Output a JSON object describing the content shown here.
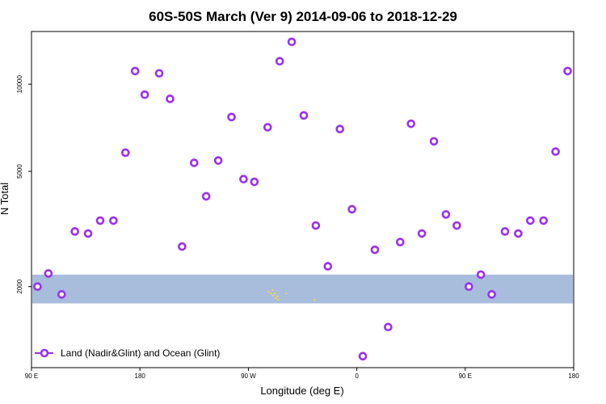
{
  "chart_data": {
    "type": "scatter",
    "title": "60S-50S March (Ver 9)   2014-09-06 to 2018-12-29",
    "xlabel": "Longitude (deg E)",
    "ylabel": "N Total",
    "x_ticks": [
      {
        "value": 90,
        "label": "90 E"
      },
      {
        "value": 180,
        "label": "180"
      },
      {
        "value": 270,
        "label": "90 W"
      },
      {
        "value": 360,
        "label": "0"
      },
      {
        "value": 450,
        "label": "90 E"
      },
      {
        "value": 540,
        "label": "180"
      }
    ],
    "y_ticks": [
      {
        "value": 2000,
        "label": "2000"
      },
      {
        "value": 5000,
        "label": "5000"
      },
      {
        "value": 10000,
        "label": "10000"
      }
    ],
    "xlim": [
      90,
      540
    ],
    "ylim": [
      1050,
      15200
    ],
    "y_scale": "log",
    "grid": false,
    "legend_position": "bottom-left",
    "land_band": {
      "y_range": [
        1750,
        2200
      ],
      "color": "#a8bcdc"
    },
    "land_color": "#f0d060",
    "series": [
      {
        "name": "Land (Nadir&Glint) and Ocean (Glint)",
        "color": "#9b30f0",
        "points": [
          {
            "x": 95,
            "y": 2000
          },
          {
            "x": 104,
            "y": 2220
          },
          {
            "x": 115,
            "y": 1880
          },
          {
            "x": 126,
            "y": 3100
          },
          {
            "x": 137,
            "y": 3050
          },
          {
            "x": 147,
            "y": 3380
          },
          {
            "x": 158,
            "y": 3380
          },
          {
            "x": 168,
            "y": 5800
          },
          {
            "x": 176,
            "y": 11100
          },
          {
            "x": 184,
            "y": 9200
          },
          {
            "x": 196,
            "y": 10900
          },
          {
            "x": 205,
            "y": 8900
          },
          {
            "x": 215,
            "y": 2750
          },
          {
            "x": 225,
            "y": 5350
          },
          {
            "x": 235,
            "y": 4100
          },
          {
            "x": 245,
            "y": 5450
          },
          {
            "x": 256,
            "y": 7700
          },
          {
            "x": 266,
            "y": 4700
          },
          {
            "x": 275,
            "y": 4600
          },
          {
            "x": 286,
            "y": 7100
          },
          {
            "x": 296,
            "y": 12000
          },
          {
            "x": 306,
            "y": 14000
          },
          {
            "x": 316,
            "y": 7800
          },
          {
            "x": 326,
            "y": 3250
          },
          {
            "x": 336,
            "y": 2350
          },
          {
            "x": 346,
            "y": 7000
          },
          {
            "x": 356,
            "y": 3700
          },
          {
            "x": 365,
            "y": 1150
          },
          {
            "x": 375,
            "y": 2680
          },
          {
            "x": 386,
            "y": 1450
          },
          {
            "x": 396,
            "y": 2850
          },
          {
            "x": 405,
            "y": 7300
          },
          {
            "x": 414,
            "y": 3050
          },
          {
            "x": 424,
            "y": 6350
          },
          {
            "x": 434,
            "y": 3550
          },
          {
            "x": 443,
            "y": 3250
          },
          {
            "x": 453,
            "y": 2000
          },
          {
            "x": 463,
            "y": 2200
          },
          {
            "x": 472,
            "y": 1880
          },
          {
            "x": 483,
            "y": 3100
          },
          {
            "x": 494,
            "y": 3050
          },
          {
            "x": 504,
            "y": 3380
          },
          {
            "x": 515,
            "y": 3380
          },
          {
            "x": 525,
            "y": 5850
          },
          {
            "x": 535,
            "y": 11100
          }
        ]
      }
    ]
  }
}
